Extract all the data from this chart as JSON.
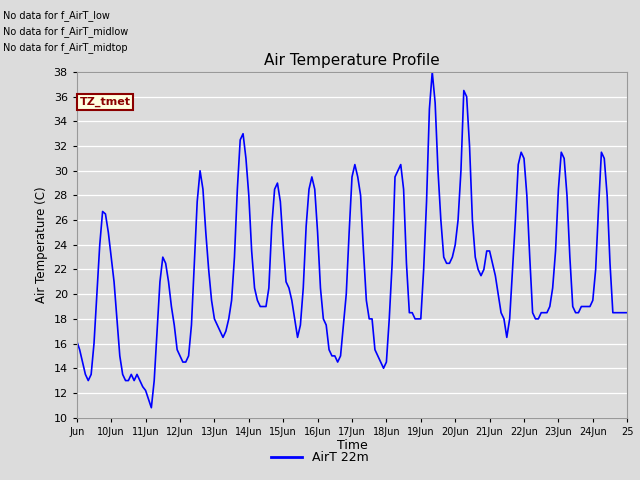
{
  "title": "Air Temperature Profile",
  "xlabel": "Time",
  "ylabel": "Air Temperature (C)",
  "legend_label": "AirT 22m",
  "ylim": [
    10,
    38
  ],
  "yticks": [
    10,
    12,
    14,
    16,
    18,
    20,
    22,
    24,
    26,
    28,
    30,
    32,
    34,
    36,
    38
  ],
  "line_color": "#0000FF",
  "bg_color": "#dcdcdc",
  "annotations": [
    "No data for f_AirT_low",
    "No data for f_AirT_midlow",
    "No data for f_AirT_midtop"
  ],
  "tz_label": "TZ_tmet",
  "x_tick_labels": [
    "Jun",
    "10Jun",
    "11Jun",
    "12Jun",
    "13Jun",
    "14Jun",
    "15Jun",
    "16Jun",
    "17Jun",
    "18Jun",
    "19Jun",
    "20Jun",
    "21Jun",
    "22Jun",
    "23Jun",
    "24Jun",
    "25"
  ],
  "temperature_data": {
    "x": [
      0.0,
      0.083,
      0.167,
      0.25,
      0.333,
      0.417,
      0.5,
      0.583,
      0.667,
      0.75,
      0.833,
      0.917,
      1.0,
      1.083,
      1.167,
      1.25,
      1.333,
      1.417,
      1.5,
      1.583,
      1.667,
      1.75,
      1.833,
      1.917,
      2.0,
      2.083,
      2.167,
      2.25,
      2.333,
      2.417,
      2.5,
      2.583,
      2.667,
      2.75,
      2.833,
      2.917,
      3.0,
      3.083,
      3.167,
      3.25,
      3.333,
      3.417,
      3.5,
      3.583,
      3.667,
      3.75,
      3.833,
      3.917,
      4.0,
      4.083,
      4.167,
      4.25,
      4.333,
      4.417,
      4.5,
      4.583,
      4.667,
      4.75,
      4.833,
      4.917,
      5.0,
      5.083,
      5.167,
      5.25,
      5.333,
      5.417,
      5.5,
      5.583,
      5.667,
      5.75,
      5.833,
      5.917,
      6.0,
      6.083,
      6.167,
      6.25,
      6.333,
      6.417,
      6.5,
      6.583,
      6.667,
      6.75,
      6.833,
      6.917,
      7.0,
      7.083,
      7.167,
      7.25,
      7.333,
      7.417,
      7.5,
      7.583,
      7.667,
      7.75,
      7.833,
      7.917,
      8.0,
      8.083,
      8.167,
      8.25,
      8.333,
      8.417,
      8.5,
      8.583,
      8.667,
      8.75,
      8.833,
      8.917,
      9.0,
      9.083,
      9.167,
      9.25,
      9.333,
      9.417,
      9.5,
      9.583,
      9.667,
      9.75,
      9.833,
      9.917,
      10.0,
      10.083,
      10.167,
      10.25,
      10.333,
      10.417,
      10.5,
      10.583,
      10.667,
      10.75,
      10.833,
      10.917,
      11.0,
      11.083,
      11.167,
      11.25,
      11.333,
      11.417,
      11.5,
      11.583,
      11.667,
      11.75,
      11.833,
      11.917,
      12.0,
      12.083,
      12.167,
      12.25,
      12.333,
      12.417,
      12.5,
      12.583,
      12.667,
      12.75,
      12.833,
      12.917,
      13.0,
      13.083,
      13.167,
      13.25,
      13.333,
      13.417,
      13.5,
      13.583,
      13.667,
      13.75,
      13.833,
      13.917,
      14.0,
      14.083,
      14.167,
      14.25,
      14.333,
      14.417,
      14.5,
      14.583,
      14.667,
      14.75,
      14.833,
      14.917,
      15.0,
      15.083,
      15.167,
      15.25,
      15.333,
      15.417,
      15.5,
      15.583,
      15.667,
      15.75,
      15.833,
      15.917,
      16.0
    ],
    "y": [
      16.2,
      15.5,
      14.5,
      13.5,
      13.0,
      13.5,
      16.0,
      20.0,
      24.0,
      26.7,
      26.5,
      25.0,
      23.0,
      21.0,
      18.0,
      15.0,
      13.5,
      13.0,
      13.0,
      13.5,
      13.0,
      13.5,
      13.0,
      12.5,
      12.2,
      11.5,
      10.8,
      13.0,
      17.0,
      21.0,
      23.0,
      22.5,
      21.0,
      19.0,
      17.5,
      15.5,
      15.0,
      14.5,
      14.5,
      15.0,
      17.5,
      22.5,
      27.5,
      30.0,
      28.5,
      25.0,
      22.0,
      19.5,
      18.0,
      17.5,
      17.0,
      16.5,
      17.0,
      18.0,
      19.5,
      23.0,
      28.5,
      32.5,
      33.0,
      31.0,
      28.0,
      23.5,
      20.5,
      19.5,
      19.0,
      19.0,
      19.0,
      20.5,
      25.5,
      28.5,
      29.0,
      27.5,
      24.0,
      21.0,
      20.5,
      19.5,
      18.0,
      16.5,
      17.5,
      20.5,
      25.5,
      28.5,
      29.5,
      28.5,
      25.0,
      20.5,
      18.0,
      17.5,
      15.5,
      15.0,
      15.0,
      14.5,
      15.0,
      17.5,
      20.0,
      25.0,
      29.5,
      30.5,
      29.5,
      28.0,
      23.5,
      19.5,
      18.0,
      18.0,
      15.5,
      15.0,
      14.5,
      14.0,
      14.5,
      18.0,
      22.5,
      29.5,
      30.0,
      30.5,
      28.5,
      22.5,
      18.5,
      18.5,
      18.0,
      18.0,
      18.0,
      22.0,
      27.5,
      35.0,
      38.0,
      35.5,
      30.0,
      26.0,
      23.0,
      22.5,
      22.5,
      23.0,
      24.0,
      26.0,
      30.0,
      36.5,
      36.0,
      32.0,
      26.0,
      23.0,
      22.0,
      21.5,
      22.0,
      23.5,
      23.5,
      22.5,
      21.5,
      20.0,
      18.5,
      18.0,
      16.5,
      18.0,
      22.0,
      26.0,
      30.5,
      31.5,
      31.0,
      28.0,
      23.0,
      18.5,
      18.0,
      18.0,
      18.5,
      18.5,
      18.5,
      19.0,
      20.5,
      23.5,
      28.5,
      31.5,
      31.0,
      28.0,
      23.0,
      19.0,
      18.5,
      18.5,
      19.0,
      19.0,
      19.0,
      19.0,
      19.5,
      22.0,
      27.0,
      31.5,
      31.0,
      28.0,
      22.5,
      18.5,
      18.5,
      18.5,
      18.5,
      18.5,
      18.5
    ]
  }
}
